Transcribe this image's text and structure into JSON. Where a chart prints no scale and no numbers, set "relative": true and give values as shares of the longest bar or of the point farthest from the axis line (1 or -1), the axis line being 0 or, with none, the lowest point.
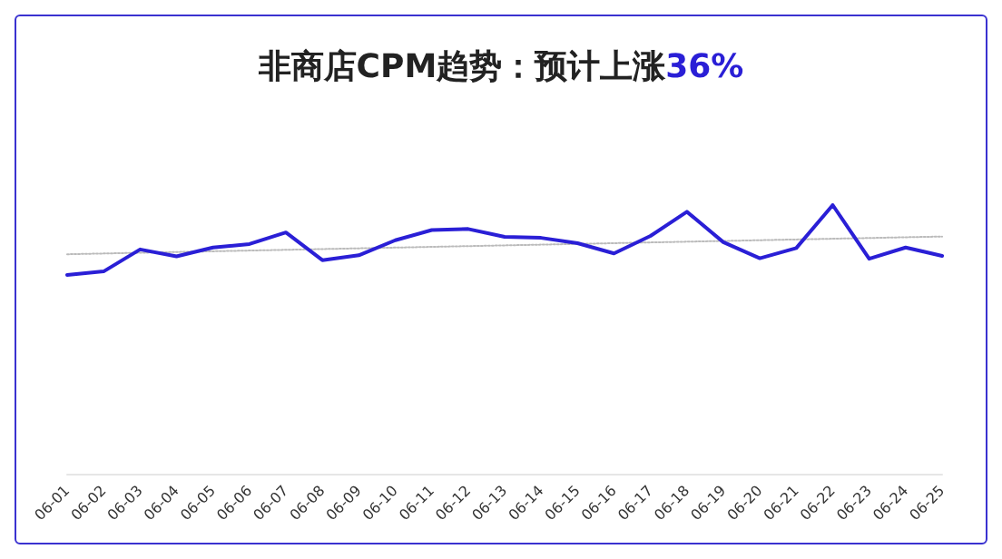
{
  "chart_data": {
    "type": "line",
    "title": "非商店CPM趋势：预计上涨36%",
    "relative": true,
    "grid": false,
    "marker": "none",
    "categories": [
      "06-01",
      "06-02",
      "06-03",
      "06-04",
      "06-05",
      "06-06",
      "06-07",
      "06-08",
      "06-09",
      "06-10",
      "06-11",
      "06-12",
      "06-13",
      "06-14",
      "06-15",
      "06-16",
      "06-17",
      "06-18",
      "06-19",
      "06-20",
      "06-21",
      "06-22",
      "06-23",
      "06-24",
      "06-25"
    ],
    "series": [
      {
        "color": "#2a1fd6",
        "values": [
          0.74,
          0.753,
          0.835,
          0.809,
          0.842,
          0.855,
          0.898,
          0.795,
          0.813,
          0.869,
          0.907,
          0.911,
          0.882,
          0.878,
          0.858,
          0.82,
          0.885,
          0.975,
          0.862,
          0.802,
          0.84,
          1,
          0.8,
          0.842,
          0.811
        ]
      },
      {
        "type": "line",
        "color": "#bbbbbb",
        "line_style": "dotted",
        "x": [
          "06-01",
          "06-25"
        ],
        "values": [
          0.817,
          0.883
        ]
      }
    ]
  }
}
